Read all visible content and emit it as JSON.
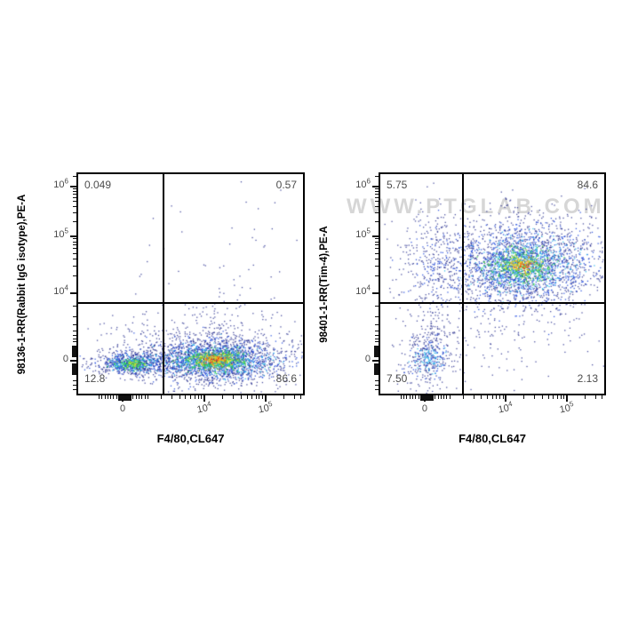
{
  "watermark": {
    "text": "WWW.PTGLAB.COM",
    "color": "#d6d6d6"
  },
  "axis_layout": {
    "y_major": [
      {
        "base": "10",
        "exp": "6",
        "frac": 0.944
      },
      {
        "base": "10",
        "exp": "5",
        "frac": 0.717
      },
      {
        "base": "10",
        "exp": "4",
        "frac": 0.458
      },
      {
        "base": "0",
        "exp": "",
        "frac": 0.151
      }
    ],
    "y_minor": [
      0.99,
      0.934,
      0.922,
      0.909,
      0.894,
      0.876,
      0.854,
      0.825,
      0.785,
      0.705,
      0.692,
      0.677,
      0.66,
      0.639,
      0.614,
      0.582,
      0.536,
      0.398,
      0.35,
      0.315,
      0.287,
      0.267,
      0.251,
      0.237,
      0.06,
      0.04,
      0.02
    ],
    "y_blocks": [
      [
        0.167,
        0.219
      ],
      [
        0.084,
        0.139
      ]
    ],
    "x_major": [
      {
        "base": "0",
        "exp": "",
        "frac": 0.198
      },
      {
        "base": "10",
        "exp": "4",
        "frac": 0.56
      },
      {
        "base": "10",
        "exp": "5",
        "frac": 0.833
      }
    ],
    "x_minor": [
      0.093,
      0.106,
      0.119,
      0.132,
      0.145,
      0.158,
      0.171,
      0.245,
      0.258,
      0.271,
      0.284,
      0.297,
      0.31,
      0.37,
      0.418,
      0.452,
      0.478,
      0.5,
      0.518,
      0.534,
      0.548,
      0.642,
      0.69,
      0.724,
      0.751,
      0.772,
      0.791,
      0.806,
      0.821,
      0.914,
      0.963,
      0.99
    ],
    "x_blocks": [
      [
        0.179,
        0.237
      ]
    ]
  },
  "dot_colors": {
    "navy": "#232a8c",
    "blue": "#2a52e0",
    "cyan": "#2cb8e8",
    "green": "#35d03a",
    "yellow": "#e3e832",
    "orange": "#ff9a1c",
    "red": "#ef3b14"
  },
  "chart_data": [
    {
      "type": "scatter",
      "panel": "left",
      "title": "",
      "xlabel": "F4/80,CL647",
      "ylabel": "98136-1-RR(Rabbit IgG isotype),PE-A",
      "x_axis": {
        "scale": "biexponential",
        "ticks": [
          "0",
          "10^4",
          "10^5"
        ]
      },
      "y_axis": {
        "scale": "biexponential",
        "ticks": [
          "10^6",
          "10^5",
          "10^4",
          "0"
        ]
      },
      "quadrants": {
        "top_left": "0.049",
        "top_right": "0.57",
        "bottom_left": "12.8",
        "bottom_right": "86.6"
      },
      "gate": {
        "x_frac": 0.381,
        "y_frac": 0.414
      },
      "clusters": [
        {
          "cx": 0.237,
          "cy": 0.139,
          "layers": [
            {
              "color": "navy",
              "n": 450,
              "sx": 0.1,
              "sy": 0.034
            },
            {
              "color": "blue",
              "n": 260,
              "sx": 0.072,
              "sy": 0.024
            },
            {
              "color": "cyan",
              "n": 150,
              "sx": 0.05,
              "sy": 0.017
            },
            {
              "color": "green",
              "n": 100,
              "sx": 0.034,
              "sy": 0.012
            },
            {
              "color": "yellow",
              "n": 20,
              "sx": 0.02,
              "sy": 0.008
            }
          ]
        },
        {
          "cx": 0.23,
          "cy": 0.245,
          "layers": [
            {
              "color": "navy",
              "n": 60,
              "sx": 0.1,
              "sy": 0.065
            }
          ]
        },
        {
          "cx": 0.611,
          "cy": 0.155,
          "layers": [
            {
              "color": "navy",
              "n": 1300,
              "sx": 0.175,
              "sy": 0.062
            },
            {
              "color": "blue",
              "n": 800,
              "sx": 0.14,
              "sy": 0.044
            },
            {
              "color": "cyan",
              "n": 500,
              "sx": 0.105,
              "sy": 0.032
            },
            {
              "color": "green",
              "n": 300,
              "sx": 0.073,
              "sy": 0.022
            },
            {
              "color": "yellow",
              "n": 140,
              "sx": 0.05,
              "sy": 0.016
            },
            {
              "color": "orange",
              "n": 70,
              "sx": 0.034,
              "sy": 0.012
            },
            {
              "color": "red",
              "n": 30,
              "sx": 0.022,
              "sy": 0.008
            }
          ]
        },
        {
          "cx": 0.6,
          "cy": 0.25,
          "layers": [
            {
              "color": "navy",
              "n": 230,
              "sx": 0.16,
              "sy": 0.09
            }
          ]
        },
        {
          "cx": 0.65,
          "cy": 0.6,
          "layers": [
            {
              "color": "navy",
              "n": 50,
              "sx": 0.17,
              "sy": 0.18
            }
          ]
        },
        {
          "cx": 0.3,
          "cy": 0.55,
          "layers": [
            {
              "color": "navy",
              "n": 4,
              "sx": 0.08,
              "sy": 0.15
            }
          ]
        }
      ]
    },
    {
      "type": "scatter",
      "panel": "right",
      "title": "",
      "xlabel": "F4/80,CL647",
      "ylabel": "98401-1-RR(Tim-4),PE-A",
      "x_axis": {
        "scale": "biexponential",
        "ticks": [
          "0",
          "10^4",
          "10^5"
        ]
      },
      "y_axis": {
        "scale": "biexponential",
        "ticks": [
          "10^6",
          "10^5",
          "10^4",
          "0"
        ]
      },
      "quadrants": {
        "top_left": "5.75",
        "top_right": "84.6",
        "bottom_left": "7.50",
        "bottom_right": "2.13"
      },
      "gate": {
        "x_frac": 0.371,
        "y_frac": 0.414
      },
      "clusters": [
        {
          "cx": 0.633,
          "cy": 0.585,
          "layers": [
            {
              "color": "navy",
              "n": 1600,
              "sx": 0.195,
              "sy": 0.118
            },
            {
              "color": "blue",
              "n": 900,
              "sx": 0.15,
              "sy": 0.086
            },
            {
              "color": "cyan",
              "n": 450,
              "sx": 0.103,
              "sy": 0.058
            },
            {
              "color": "green",
              "n": 260,
              "sx": 0.07,
              "sy": 0.04
            },
            {
              "color": "yellow",
              "n": 110,
              "sx": 0.044,
              "sy": 0.026
            },
            {
              "color": "orange",
              "n": 50,
              "sx": 0.03,
              "sy": 0.017
            },
            {
              "color": "red",
              "n": 18,
              "sx": 0.019,
              "sy": 0.011
            }
          ]
        },
        {
          "cx": 0.235,
          "cy": 0.575,
          "layers": [
            {
              "color": "navy",
              "n": 240,
              "sx": 0.092,
              "sy": 0.13
            },
            {
              "color": "blue",
              "n": 70,
              "sx": 0.062,
              "sy": 0.085
            }
          ]
        },
        {
          "cx": 0.214,
          "cy": 0.16,
          "layers": [
            {
              "color": "navy",
              "n": 250,
              "sx": 0.064,
              "sy": 0.078
            },
            {
              "color": "blue",
              "n": 90,
              "sx": 0.042,
              "sy": 0.042
            },
            {
              "color": "cyan",
              "n": 65,
              "sx": 0.03,
              "sy": 0.025
            }
          ]
        },
        {
          "cx": 0.222,
          "cy": 0.3,
          "layers": [
            {
              "color": "navy",
              "n": 80,
              "sx": 0.05,
              "sy": 0.07
            }
          ]
        },
        {
          "cx": 0.64,
          "cy": 0.2,
          "layers": [
            {
              "color": "navy",
              "n": 70,
              "sx": 0.21,
              "sy": 0.088
            }
          ]
        }
      ]
    }
  ]
}
